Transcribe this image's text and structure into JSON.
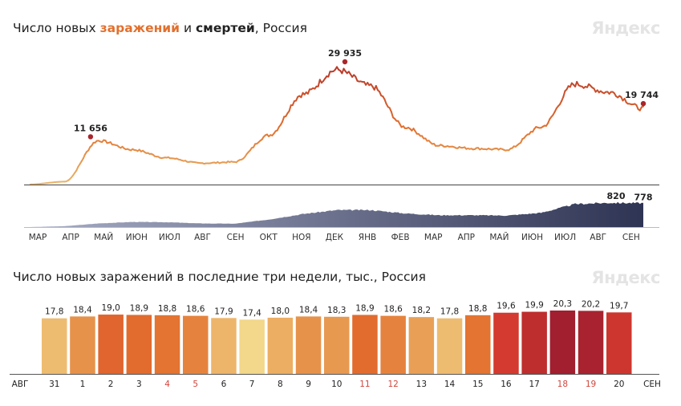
{
  "chart1": {
    "title_prefix": "Число новых ",
    "title_infections": "заражений",
    "title_and": " и ",
    "title_deaths": "смертей",
    "title_suffix": ", Россия",
    "brand": "Яндекс"
  },
  "chart2": {
    "title": "Число новых заражений в последние три недели, тыс., Россия",
    "brand": "Яндекс"
  },
  "colors": {
    "infection_low": "#e9b66b",
    "infection_mid": "#e2702e",
    "infection_high": "#b93b2b",
    "deaths_fill": "#2e3453",
    "peak_marker": "#a8262b"
  },
  "chart_data": [
    {
      "type": "line",
      "series": [
        {
          "name": "заражений",
          "x": [
            "МАР 2020",
            "АПР 2020",
            "МАЙ 2020",
            "ИЮН 2020",
            "ИЮЛ 2020",
            "АВГ 2020",
            "СЕН 2020",
            "ОКТ 2020",
            "НОЯ 2020",
            "ДЕК 2020",
            "ЯНВ 2021",
            "ФЕВ 2021",
            "МАР 2021",
            "АПР 2021",
            "МАЙ 2021",
            "ИЮН 2021",
            "ИЮЛ 2021",
            "АВГ 2021",
            "СЕН 2021"
          ],
          "values": [
            50,
            700,
            10700,
            8500,
            6500,
            5200,
            5500,
            12000,
            22000,
            28000,
            24000,
            14000,
            9500,
            8800,
            8500,
            14000,
            24500,
            22500,
            18500
          ],
          "key_points": [
            {
              "date": "11 мая 2020",
              "label": "11 656",
              "value": 11656
            },
            {
              "date": "24 дек 2020",
              "label": "29 935",
              "value": 29935
            },
            {
              "date": "20 сен 2021",
              "label": "19 744",
              "value": 19744
            }
          ]
        },
        {
          "name": "смертей",
          "x": [
            "МАР 2020",
            "АПР 2020",
            "МАЙ 2020",
            "ИЮН 2020",
            "ИЮЛ 2020",
            "АВГ 2020",
            "СЕН 2020",
            "ОКТ 2020",
            "НОЯ 2020",
            "ДЕК 2020",
            "ЯНВ 2021",
            "ФЕВ 2021",
            "МАР 2021",
            "АПР 2021",
            "МАЙ 2021",
            "ИЮН 2021",
            "ИЮЛ 2021",
            "АВГ 2021",
            "СЕН 2021"
          ],
          "values": [
            0,
            30,
            120,
            170,
            160,
            120,
            110,
            250,
            430,
            560,
            560,
            450,
            390,
            390,
            380,
            470,
            760,
            800,
            790
          ],
          "key_points": [
            {
              "date": "авг 2021",
              "label": "820",
              "value": 820
            },
            {
              "date": "20 сен 2021",
              "label": "778",
              "value": 778
            }
          ]
        }
      ],
      "x_ticks": [
        "МАР",
        "АПР",
        "МАЙ",
        "ИЮН",
        "ИЮЛ",
        "АВГ",
        "СЕН",
        "ОКТ",
        "НОЯ",
        "ДЕК",
        "ЯНВ",
        "ФЕВ",
        "МАР",
        "АПР",
        "МАЙ",
        "ИЮН",
        "ИЮЛ",
        "АВГ",
        "СЕН"
      ],
      "grid": false,
      "legend": "none"
    },
    {
      "type": "bar",
      "title": "Число новых заражений в последние три недели, тыс., Россия",
      "categories": [
        "31",
        "1",
        "2",
        "3",
        "4",
        "5",
        "6",
        "7",
        "8",
        "9",
        "10",
        "11",
        "12",
        "13",
        "14",
        "15",
        "16",
        "17",
        "18",
        "19",
        "20"
      ],
      "values": [
        17.8,
        18.4,
        19.0,
        18.9,
        18.8,
        18.6,
        17.9,
        17.4,
        18.0,
        18.4,
        18.3,
        18.9,
        18.6,
        18.2,
        17.8,
        18.8,
        19.6,
        19.9,
        20.3,
        20.2,
        19.7
      ],
      "value_labels": [
        "17,8",
        "18,4",
        "19,0",
        "18,9",
        "18,8",
        "18,6",
        "17,9",
        "17,4",
        "18,0",
        "18,4",
        "18,3",
        "18,9",
        "18,6",
        "18,2",
        "17,8",
        "18,8",
        "19,6",
        "19,9",
        "20,3",
        "20,2",
        "19,7"
      ],
      "weekend_categories": [
        "4",
        "5",
        "11",
        "12",
        "18",
        "19"
      ],
      "weekend_label_color": "#d2453c",
      "month_start": "АВГ",
      "month_end": "СЕН",
      "ylim": [
        0,
        20.3
      ],
      "grid": false,
      "legend": "none"
    }
  ]
}
